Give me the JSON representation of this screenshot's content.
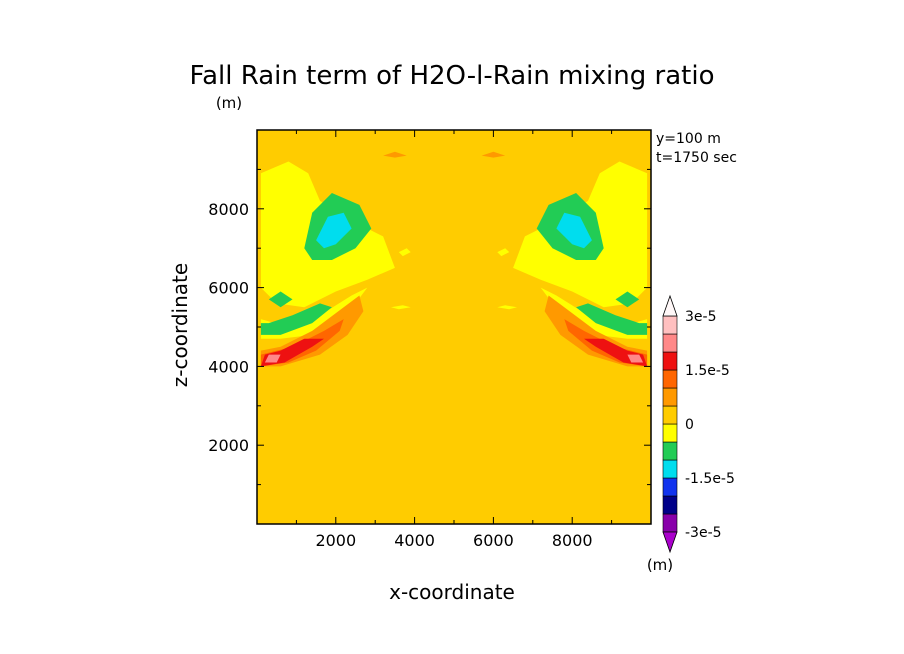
{
  "chart_data": {
    "type": "heatmap",
    "title": "Fall Rain term of H2O-l-Rain mixing ratio",
    "title_units": "(m)",
    "xlabel": "x-coordinate",
    "ylabel": "z-coordinate",
    "xlim": [
      0,
      10000
    ],
    "ylim": [
      0,
      10000
    ],
    "x_ticks": [
      2000,
      4000,
      6000,
      8000
    ],
    "y_ticks": [
      2000,
      4000,
      6000,
      8000
    ],
    "x_tick_labels": [
      "2000",
      "4000",
      "6000",
      "8000"
    ],
    "y_tick_labels": [
      "2000",
      "4000",
      "6000",
      "8000"
    ],
    "annotations": [
      "y=100 m",
      "t=1750 sec"
    ],
    "colorbar": {
      "units": "(m)",
      "levels": [
        -3e-05,
        -2.5e-05,
        -2e-05,
        -1.5e-05,
        -1e-05,
        -5e-06,
        0,
        5e-06,
        1e-05,
        1.5e-05,
        2e-05,
        2.5e-05,
        3e-05
      ],
      "colors": [
        "#8800aa",
        "#000088",
        "#1133ee",
        "#00ddee",
        "#22cc55",
        "#ffff00",
        "#ffcc00",
        "#ff9900",
        "#ff6600",
        "#ee1111",
        "#ff8888",
        "#ffc0c0"
      ],
      "labels": [
        {
          "text": "3e-5",
          "value": 3e-05
        },
        {
          "text": "1.5e-5",
          "value": 1.5e-05
        },
        {
          "text": "0",
          "value": 0
        },
        {
          "text": "-1.5e-5",
          "value": -1.5e-05
        },
        {
          "text": "-3e-5",
          "value": -3e-05
        }
      ]
    },
    "background_color": "#ffcc00",
    "regions": [
      {
        "name": "left-yellow-upper",
        "color": "#ffff00",
        "points": [
          [
            100,
            8900
          ],
          [
            800,
            9200
          ],
          [
            1300,
            8900
          ],
          [
            1600,
            8200
          ],
          [
            2400,
            7700
          ],
          [
            3200,
            7300
          ],
          [
            3500,
            6500
          ],
          [
            2800,
            6200
          ],
          [
            2000,
            5900
          ],
          [
            1200,
            5500
          ],
          [
            500,
            5600
          ],
          [
            100,
            6000
          ]
        ]
      },
      {
        "name": "left-yellow-lower",
        "color": "#ffff00",
        "points": [
          [
            100,
            5200
          ],
          [
            800,
            5000
          ],
          [
            1600,
            5300
          ],
          [
            2400,
            5800
          ],
          [
            2800,
            6000
          ],
          [
            2200,
            5200
          ],
          [
            1400,
            4800
          ],
          [
            600,
            4700
          ],
          [
            100,
            4700
          ]
        ]
      },
      {
        "name": "left-green-blob",
        "color": "#22cc55",
        "points": [
          [
            1200,
            7000
          ],
          [
            1400,
            7900
          ],
          [
            1900,
            8400
          ],
          [
            2600,
            8100
          ],
          [
            2900,
            7500
          ],
          [
            2500,
            7000
          ],
          [
            1900,
            6700
          ],
          [
            1400,
            6700
          ]
        ]
      },
      {
        "name": "left-cyan-blob",
        "color": "#00ddee",
        "points": [
          [
            1500,
            7200
          ],
          [
            1800,
            7800
          ],
          [
            2200,
            7900
          ],
          [
            2400,
            7500
          ],
          [
            2000,
            7100
          ],
          [
            1700,
            7000
          ]
        ]
      },
      {
        "name": "left-green-small",
        "color": "#22cc55",
        "points": [
          [
            300,
            5700
          ],
          [
            600,
            5900
          ],
          [
            900,
            5700
          ],
          [
            600,
            5500
          ]
        ]
      },
      {
        "name": "left-orange-band",
        "color": "#ff9900",
        "points": [
          [
            100,
            4000
          ],
          [
            600,
            4000
          ],
          [
            1600,
            4300
          ],
          [
            2300,
            4800
          ],
          [
            2700,
            5400
          ],
          [
            2600,
            5800
          ],
          [
            2200,
            5500
          ],
          [
            1400,
            4900
          ],
          [
            600,
            4500
          ],
          [
            100,
            4400
          ]
        ]
      },
      {
        "name": "left-green-band",
        "color": "#22cc55",
        "points": [
          [
            100,
            4800
          ],
          [
            600,
            4800
          ],
          [
            1400,
            5100
          ],
          [
            1900,
            5500
          ],
          [
            1600,
            5600
          ],
          [
            900,
            5300
          ],
          [
            300,
            5100
          ],
          [
            100,
            5100
          ]
        ]
      },
      {
        "name": "left-dark-orange-band",
        "color": "#ff6600",
        "points": [
          [
            100,
            4000
          ],
          [
            800,
            4100
          ],
          [
            1500,
            4400
          ],
          [
            2100,
            4900
          ],
          [
            2200,
            5200
          ],
          [
            1700,
            4900
          ],
          [
            900,
            4500
          ],
          [
            100,
            4300
          ]
        ]
      },
      {
        "name": "left-red-core",
        "color": "#ee1111",
        "points": [
          [
            100,
            4000
          ],
          [
            700,
            4100
          ],
          [
            1400,
            4500
          ],
          [
            1700,
            4700
          ],
          [
            1200,
            4700
          ],
          [
            600,
            4400
          ],
          [
            200,
            4300
          ]
        ]
      },
      {
        "name": "left-pink-core",
        "color": "#ff8888",
        "points": [
          [
            200,
            4100
          ],
          [
            500,
            4100
          ],
          [
            600,
            4300
          ],
          [
            300,
            4300
          ]
        ]
      },
      {
        "name": "right-yellow-upper",
        "color": "#ffff00",
        "points": [
          [
            9900,
            8900
          ],
          [
            9200,
            9200
          ],
          [
            8700,
            8900
          ],
          [
            8400,
            8200
          ],
          [
            7600,
            7700
          ],
          [
            6800,
            7300
          ],
          [
            6500,
            6500
          ],
          [
            7200,
            6200
          ],
          [
            8000,
            5900
          ],
          [
            8800,
            5500
          ],
          [
            9500,
            5600
          ],
          [
            9900,
            6000
          ]
        ]
      },
      {
        "name": "right-yellow-lower",
        "color": "#ffff00",
        "points": [
          [
            9900,
            5200
          ],
          [
            9200,
            5000
          ],
          [
            8400,
            5300
          ],
          [
            7600,
            5800
          ],
          [
            7200,
            6000
          ],
          [
            7800,
            5200
          ],
          [
            8600,
            4800
          ],
          [
            9400,
            4700
          ],
          [
            9900,
            4700
          ]
        ]
      },
      {
        "name": "right-green-blob",
        "color": "#22cc55",
        "points": [
          [
            8800,
            7000
          ],
          [
            8600,
            7900
          ],
          [
            8100,
            8400
          ],
          [
            7400,
            8100
          ],
          [
            7100,
            7500
          ],
          [
            7500,
            7000
          ],
          [
            8100,
            6700
          ],
          [
            8600,
            6700
          ]
        ]
      },
      {
        "name": "right-cyan-blob",
        "color": "#00ddee",
        "points": [
          [
            8500,
            7200
          ],
          [
            8200,
            7800
          ],
          [
            7800,
            7900
          ],
          [
            7600,
            7500
          ],
          [
            8000,
            7100
          ],
          [
            8300,
            7000
          ]
        ]
      },
      {
        "name": "right-green-small",
        "color": "#22cc55",
        "points": [
          [
            9700,
            5700
          ],
          [
            9400,
            5900
          ],
          [
            9100,
            5700
          ],
          [
            9400,
            5500
          ]
        ]
      },
      {
        "name": "right-orange-band",
        "color": "#ff9900",
        "points": [
          [
            9900,
            4000
          ],
          [
            9400,
            4000
          ],
          [
            8400,
            4300
          ],
          [
            7700,
            4800
          ],
          [
            7300,
            5400
          ],
          [
            7400,
            5800
          ],
          [
            7800,
            5500
          ],
          [
            8600,
            4900
          ],
          [
            9400,
            4500
          ],
          [
            9900,
            4400
          ]
        ]
      },
      {
        "name": "right-green-band",
        "color": "#22cc55",
        "points": [
          [
            9900,
            4800
          ],
          [
            9400,
            4800
          ],
          [
            8600,
            5100
          ],
          [
            8100,
            5500
          ],
          [
            8400,
            5600
          ],
          [
            9100,
            5300
          ],
          [
            9700,
            5100
          ],
          [
            9900,
            5100
          ]
        ]
      },
      {
        "name": "right-dark-orange-band",
        "color": "#ff6600",
        "points": [
          [
            9900,
            4000
          ],
          [
            9200,
            4100
          ],
          [
            8500,
            4400
          ],
          [
            7900,
            4900
          ],
          [
            7800,
            5200
          ],
          [
            8300,
            4900
          ],
          [
            9100,
            4500
          ],
          [
            9900,
            4300
          ]
        ]
      },
      {
        "name": "right-red-core",
        "color": "#ee1111",
        "points": [
          [
            9900,
            4000
          ],
          [
            9300,
            4100
          ],
          [
            8600,
            4500
          ],
          [
            8300,
            4700
          ],
          [
            8800,
            4700
          ],
          [
            9400,
            4400
          ],
          [
            9800,
            4300
          ]
        ]
      },
      {
        "name": "right-pink-core",
        "color": "#ff8888",
        "points": [
          [
            9800,
            4100
          ],
          [
            9500,
            4100
          ],
          [
            9400,
            4300
          ],
          [
            9700,
            4300
          ]
        ]
      },
      {
        "name": "top-orange-left",
        "color": "#ff9900",
        "points": [
          [
            3200,
            9350
          ],
          [
            3500,
            9450
          ],
          [
            3800,
            9350
          ],
          [
            3500,
            9300
          ]
        ]
      },
      {
        "name": "top-orange-right",
        "color": "#ff9900",
        "points": [
          [
            5700,
            9350
          ],
          [
            6000,
            9450
          ],
          [
            6300,
            9350
          ],
          [
            6000,
            9300
          ]
        ]
      },
      {
        "name": "mid-yellow-left",
        "color": "#ffff00",
        "points": [
          [
            3600,
            6900
          ],
          [
            3800,
            7000
          ],
          [
            3900,
            6900
          ],
          [
            3700,
            6800
          ]
        ]
      },
      {
        "name": "mid-yellow-right",
        "color": "#ffff00",
        "points": [
          [
            6100,
            6900
          ],
          [
            6300,
            7000
          ],
          [
            6400,
            6900
          ],
          [
            6200,
            6800
          ]
        ]
      },
      {
        "name": "mid-yellow-left-2",
        "color": "#ffff00",
        "points": [
          [
            3400,
            5500
          ],
          [
            3700,
            5550
          ],
          [
            3900,
            5500
          ],
          [
            3600,
            5450
          ]
        ]
      },
      {
        "name": "mid-yellow-right-2",
        "color": "#ffff00",
        "points": [
          [
            6100,
            5500
          ],
          [
            6300,
            5550
          ],
          [
            6600,
            5500
          ],
          [
            6400,
            5450
          ]
        ]
      }
    ]
  }
}
